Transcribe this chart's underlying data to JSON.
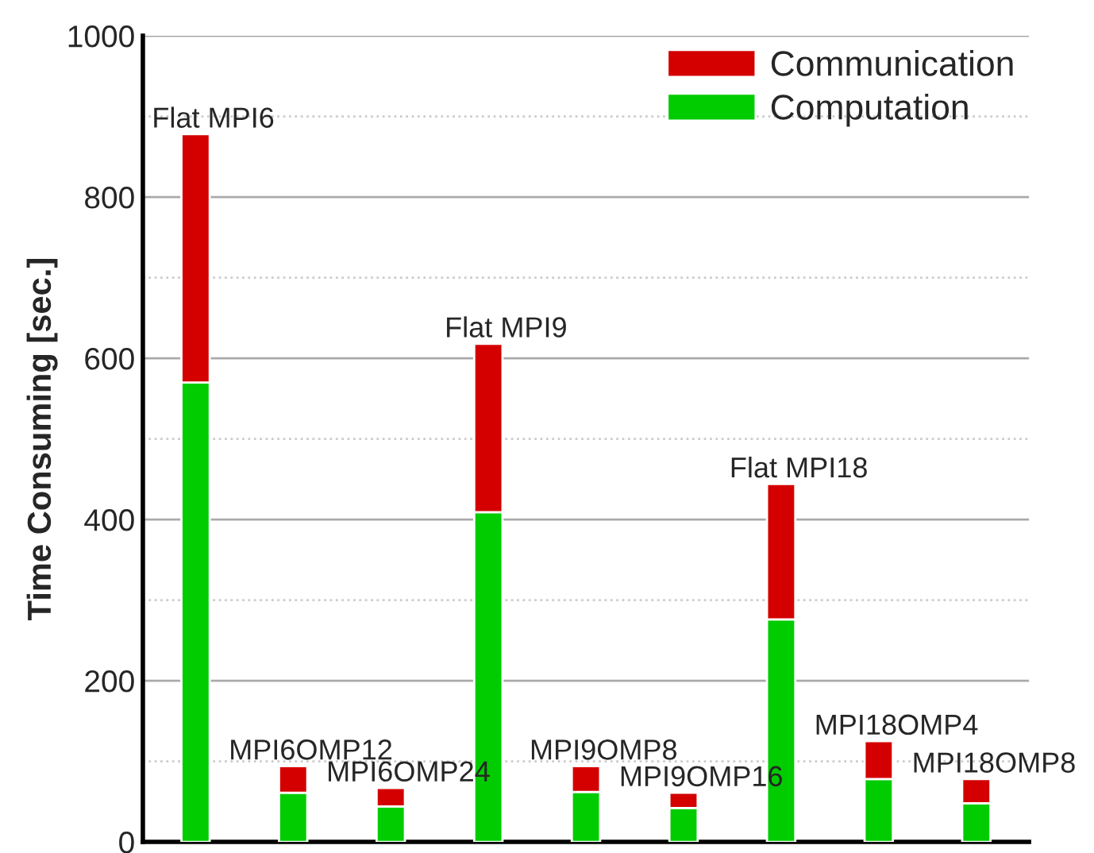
{
  "chart_data": {
    "type": "bar",
    "stacked": true,
    "ylabel": "Time Consuming [sec.]",
    "categories": [
      null,
      null,
      null,
      null,
      null,
      null,
      null,
      null,
      null
    ],
    "series": [
      {
        "name": "Computation",
        "color": "#00cc00",
        "values": [
          570,
          61,
          44,
          409,
          62,
          42,
          276,
          78,
          48
        ]
      },
      {
        "name": "Communication",
        "color": "#d40000",
        "values": [
          308,
          33,
          23,
          209,
          32,
          19,
          168,
          47,
          30
        ]
      }
    ],
    "annotations": [
      "Flat MPI6",
      "MPI6OMP12",
      "MPI6OMP24",
      "Flat MPI9",
      "MPI9OMP8",
      "MPI9OMP16",
      "Flat MPI18",
      "MPI18OMP4",
      "MPI18OMP8"
    ],
    "ylim": [
      0,
      1000
    ],
    "yticks": [
      0,
      200,
      400,
      600,
      800,
      1000
    ],
    "grid": "y",
    "legend": "top right",
    "tick_labels": "y"
  }
}
